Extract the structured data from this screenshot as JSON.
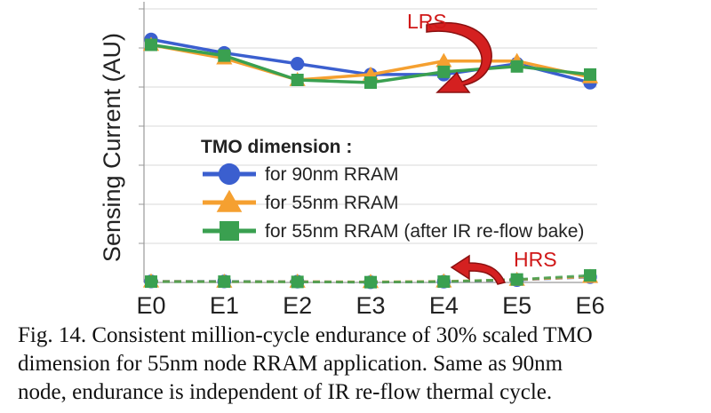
{
  "chart_data": {
    "type": "line",
    "title": "",
    "xlabel": "",
    "ylabel": "Sensing Current (AU)",
    "categories": [
      "E0",
      "E1",
      "E2",
      "E3",
      "E4",
      "E5",
      "E6"
    ],
    "ylim": [
      0,
      100
    ],
    "grid": "horizontal",
    "legend_title": "TMO dimension :",
    "legend_position": "center-left",
    "series": [
      {
        "name": "for 90nm RRAM",
        "state": "LRS",
        "color": "#3b5fcf",
        "marker": "circle",
        "values": [
          90,
          85,
          81,
          77,
          77,
          81,
          74
        ]
      },
      {
        "name": "for 55nm RRAM",
        "state": "LRS",
        "color": "#f5a030",
        "marker": "triangle",
        "values": [
          88,
          83,
          75,
          77,
          82,
          82,
          76
        ]
      },
      {
        "name": "for 55nm RRAM (after IR re-flow bake)",
        "state": "LRS",
        "color": "#3aa050",
        "marker": "square",
        "values": [
          88,
          84,
          75,
          74,
          78,
          80,
          77
        ]
      },
      {
        "name": "for 90nm RRAM",
        "state": "HRS",
        "color": "#3b5fcf",
        "marker": "circle",
        "dashed": true,
        "values": [
          0.4,
          0.4,
          0.3,
          0.1,
          0.3,
          0.9,
          2.0
        ]
      },
      {
        "name": "for 55nm RRAM",
        "state": "HRS",
        "color": "#f5a030",
        "marker": "triangle",
        "dashed": true,
        "values": [
          0.4,
          0.3,
          0.3,
          0.2,
          0.4,
          1.0,
          2.1
        ]
      },
      {
        "name": "for 55nm RRAM (after IR re-flow bake)",
        "state": "HRS",
        "color": "#3aa050",
        "marker": "square",
        "dashed": true,
        "values": [
          0.3,
          0.3,
          0.2,
          0.1,
          0.3,
          1.1,
          2.6
        ]
      }
    ],
    "annotations": [
      {
        "text": "LRS",
        "color": "#d01818"
      },
      {
        "text": "HRS",
        "color": "#d01818"
      }
    ]
  },
  "caption": [
    "Fig. 14. Consistent million-cycle endurance of 30% scaled TMO",
    "dimension for 55nm node RRAM application. Same as 90nm",
    "node, endurance is independent of IR re-flow thermal cycle."
  ]
}
